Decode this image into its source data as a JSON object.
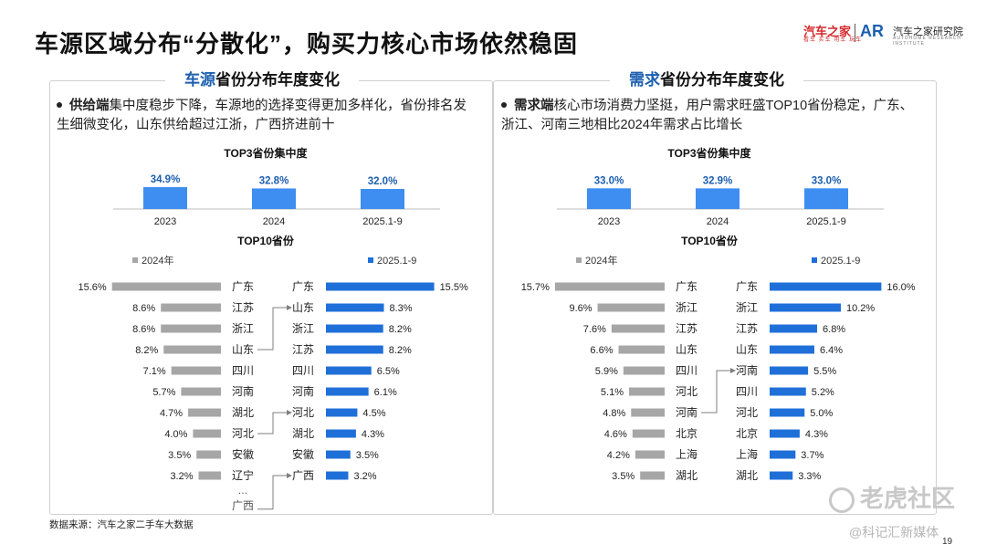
{
  "page": {
    "title": "车源区域分布“分散化”，购买力核心市场依然稳固",
    "logo_brand": "汽车之家",
    "logo_brand_sub": "看车 买车 用车 玩车",
    "logo_ar": "AR",
    "logo_name": "汽车之家研究院",
    "logo_sub": "AUTOHOME RESEARCH INSTITUTE",
    "source": "数据来源：汽车之家二手车大数据",
    "page_number": "19",
    "watermark_main": "老虎社区",
    "watermark_sub": "@科记汇新媒体"
  },
  "colors": {
    "blue": "#1f6fd9",
    "light_blue": "#3d8ef0",
    "gray": "#a6a6a6",
    "accent": "#1c5fb0"
  },
  "panels": [
    {
      "title_hl": "车源",
      "title_rest": "省份分布年度变化",
      "bullet_kw": "供给端",
      "bullet_text": "集中度稳步下降，车源地的选择变得更加多样化，省份排名发生细微变化，山东供给超过江浙，广西挤进前十",
      "top3_title": "TOP3省份集中度",
      "top10_title": "TOP10省份",
      "legend_left": "2024年",
      "legend_right": "2025.1-9",
      "ellipsis": "…",
      "extra_left_label": "广西",
      "arrows": [
        {
          "from": "山东",
          "to": "山东"
        },
        {
          "from": "河北",
          "to": "河北"
        },
        {
          "from": "广西",
          "to": "广西"
        }
      ]
    },
    {
      "title_hl": "需求",
      "title_rest": "省份分布年度变化",
      "bullet_kw": "需求端",
      "bullet_text": "核心市场消费力坚挺，用户需求旺盛TOP10省份稳定，广东、浙江、河南三地相比2024年需求占比增长",
      "top3_title": "TOP3省份集中度",
      "top10_title": "TOP10省份",
      "legend_left": "2024年",
      "legend_right": "2025.1-9",
      "arrows": [
        {
          "from": "河南",
          "to": "河南"
        }
      ]
    }
  ],
  "chart_data": [
    {
      "type": "bar",
      "title": "TOP3省份集中度",
      "categories": [
        "2023",
        "2024",
        "2025.1-9"
      ],
      "values": [
        34.9,
        32.8,
        32.0
      ],
      "value_labels": [
        "34.9%",
        "32.8%",
        "32.0%"
      ],
      "unit": "%"
    },
    {
      "type": "bar",
      "title": "TOP10省份",
      "orientation": "horizontal-mirrored",
      "series": [
        {
          "name": "2024年",
          "categories": [
            "广东",
            "江苏",
            "浙江",
            "山东",
            "四川",
            "河南",
            "湖北",
            "河北",
            "安徽",
            "辽宁"
          ],
          "values": [
            15.6,
            8.6,
            8.6,
            8.2,
            7.1,
            5.7,
            4.7,
            4.0,
            3.5,
            3.2
          ],
          "value_labels": [
            "15.6%",
            "8.6%",
            "8.6%",
            "8.2%",
            "7.1%",
            "5.7%",
            "4.7%",
            "4.0%",
            "3.5%",
            "3.2%"
          ]
        },
        {
          "name": "2025.1-9",
          "categories": [
            "广东",
            "山东",
            "浙江",
            "江苏",
            "四川",
            "河南",
            "河北",
            "湖北",
            "安徽",
            "广西"
          ],
          "values": [
            15.5,
            8.3,
            8.2,
            8.2,
            6.5,
            6.1,
            4.5,
            4.3,
            3.5,
            3.2
          ],
          "value_labels": [
            "15.5%",
            "8.3%",
            "8.2%",
            "8.2%",
            "6.5%",
            "6.1%",
            "4.5%",
            "4.3%",
            "3.5%",
            "3.2%"
          ]
        }
      ]
    },
    {
      "type": "bar",
      "title": "TOP3省份集中度",
      "categories": [
        "2023",
        "2024",
        "2025.1-9"
      ],
      "values": [
        33.0,
        32.9,
        33.0
      ],
      "value_labels": [
        "33.0%",
        "32.9%",
        "33.0%"
      ],
      "unit": "%"
    },
    {
      "type": "bar",
      "title": "TOP10省份",
      "orientation": "horizontal-mirrored",
      "series": [
        {
          "name": "2024年",
          "categories": [
            "广东",
            "浙江",
            "江苏",
            "山东",
            "四川",
            "河北",
            "河南",
            "北京",
            "上海",
            "湖北"
          ],
          "values": [
            15.7,
            9.6,
            7.6,
            6.6,
            5.9,
            5.1,
            4.8,
            4.6,
            4.2,
            3.5
          ],
          "value_labels": [
            "15.7%",
            "9.6%",
            "7.6%",
            "6.6%",
            "5.9%",
            "5.1%",
            "4.8%",
            "4.6%",
            "4.2%",
            "3.5%"
          ]
        },
        {
          "name": "2025.1-9",
          "categories": [
            "广东",
            "浙江",
            "江苏",
            "山东",
            "河南",
            "四川",
            "河北",
            "北京",
            "上海",
            "湖北"
          ],
          "values": [
            16.0,
            10.2,
            6.8,
            6.4,
            5.5,
            5.2,
            5.0,
            4.3,
            3.7,
            3.3
          ],
          "value_labels": [
            "16.0%",
            "10.2%",
            "6.8%",
            "6.4%",
            "5.5%",
            "5.2%",
            "5.0%",
            "4.3%",
            "3.7%",
            "3.3%"
          ]
        }
      ]
    }
  ]
}
